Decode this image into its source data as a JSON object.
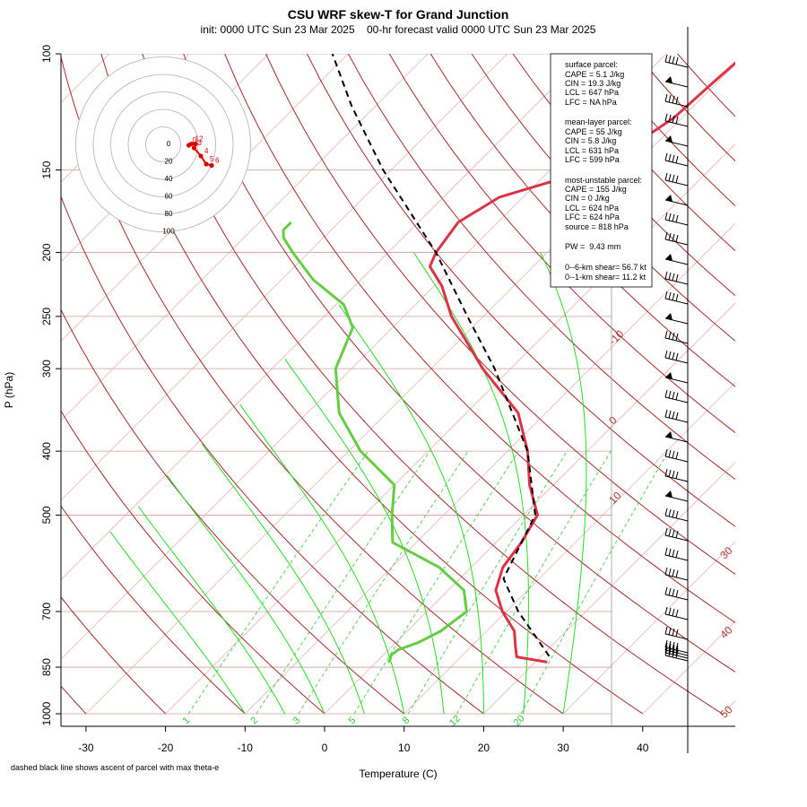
{
  "chart_data": {
    "type": "line",
    "title": "CSU WRF skew-T for Grand Junction",
    "subtitle": "init: 0000 UTC Sun 23 Mar 2025    00-hr forecast valid 0000 UTC Sun 23 Mar 2025",
    "xlabel": "Temperature (C)",
    "ylabel": "P (hPa)",
    "x_ticks": [
      "-30",
      "-20",
      "-10",
      "0",
      "10",
      "20",
      "30",
      "40"
    ],
    "y_ticks": [
      "100",
      "150",
      "200",
      "250",
      "300",
      "400",
      "500",
      "700",
      "850",
      "1000"
    ],
    "xlim": [
      -33,
      43
    ],
    "ylim": [
      1000,
      100
    ],
    "y_scale": "log",
    "footnote": "dashed black line shows ascent of parcel with max theta-e",
    "isotherm_labels": [
      "-10",
      "0",
      "10",
      "30",
      "40",
      "50"
    ],
    "mixing_ratio_labels": [
      "1",
      "2",
      "3",
      "5",
      "8",
      "12",
      "20"
    ],
    "series": [
      {
        "name": "temperature",
        "color": "#dd3344",
        "points": [
          [
            835,
            21.5
          ],
          [
            820,
            17
          ],
          [
            790,
            15.5
          ],
          [
            750,
            13.5
          ],
          [
            700,
            9.5
          ],
          [
            650,
            6
          ],
          [
            600,
            4
          ],
          [
            550,
            3.2
          ],
          [
            500,
            1.8
          ],
          [
            450,
            -3
          ],
          [
            400,
            -7.5
          ],
          [
            350,
            -13.5
          ],
          [
            300,
            -23.5
          ],
          [
            250,
            -34
          ],
          [
            225,
            -39
          ],
          [
            210,
            -43
          ],
          [
            200,
            -44
          ],
          [
            180,
            -45
          ],
          [
            165,
            -43
          ],
          [
            150,
            -35
          ],
          [
            140,
            -33
          ],
          [
            125,
            -31
          ],
          [
            110,
            -30.5
          ],
          [
            100,
            -30
          ]
        ]
      },
      {
        "name": "dewpoint",
        "color": "#66cc44",
        "points": [
          [
            835,
            1.5
          ],
          [
            830,
            1.5
          ],
          [
            815,
            1
          ],
          [
            800,
            1.2
          ],
          [
            780,
            2.8
          ],
          [
            750,
            4.2
          ],
          [
            700,
            5
          ],
          [
            650,
            2
          ],
          [
            600,
            -4
          ],
          [
            550,
            -13
          ],
          [
            500,
            -16.5
          ],
          [
            450,
            -20
          ],
          [
            400,
            -28.5
          ],
          [
            350,
            -36
          ],
          [
            300,
            -42
          ],
          [
            260,
            -45
          ],
          [
            240,
            -49
          ],
          [
            220,
            -56
          ],
          [
            200,
            -62
          ],
          [
            190,
            -65
          ],
          [
            185,
            -66
          ],
          [
            180,
            -66
          ]
        ]
      },
      {
        "name": "parcel",
        "color": "#000000",
        "dash": true,
        "points": [
          [
            818,
            21
          ],
          [
            700,
            11.5
          ],
          [
            624,
            5.5
          ],
          [
            500,
            1.5
          ],
          [
            400,
            -7.5
          ],
          [
            300,
            -22
          ],
          [
            250,
            -32
          ],
          [
            200,
            -44
          ],
          [
            150,
            -61
          ],
          [
            120,
            -73
          ],
          [
            100,
            -82
          ]
        ]
      }
    ],
    "hodograph": {
      "rings": [
        "0",
        "20",
        "40",
        "60",
        "80",
        "100"
      ],
      "point_labels": [
        "0",
        "1",
        "2",
        "3",
        "4",
        "5",
        "6"
      ],
      "points": [
        [
          3,
          2
        ],
        [
          5,
          1
        ],
        [
          8,
          1
        ],
        [
          7,
          4
        ],
        [
          12,
          10
        ],
        [
          16,
          16
        ],
        [
          20,
          17
        ]
      ]
    },
    "info": {
      "surface_header": "surface parcel:",
      "surface_cape": "CAPE = 5.1 J/kg",
      "surface_cin": "CIN = 19.3 J/kg",
      "surface_lcl": "LCL = 647 hPa",
      "surface_lfc": "LFC = NA hPa",
      "ml_header": "mean-layer parcel:",
      "ml_cape": "CAPE = 55 J/kg",
      "ml_cin": "CIN = 5.8 J/kg",
      "ml_lcl": "LCL = 631 hPa",
      "ml_lfc": "LFC = 599 hPa",
      "mu_header": "most-unstable parcel:",
      "mu_cape": "CAPE = 155 J/kg",
      "mu_cin": "CIN = 0 J/kg",
      "mu_lcl": "LCL = 624 hPa",
      "mu_lfc": "LFC = 624 hPa",
      "mu_source": "source = 818 hPa",
      "pw": "PW =  9.43 mm",
      "shear6": "0--6-km shear= 56.7 kt",
      "shear1": "0--1-km shear= 11.2 kt"
    }
  }
}
